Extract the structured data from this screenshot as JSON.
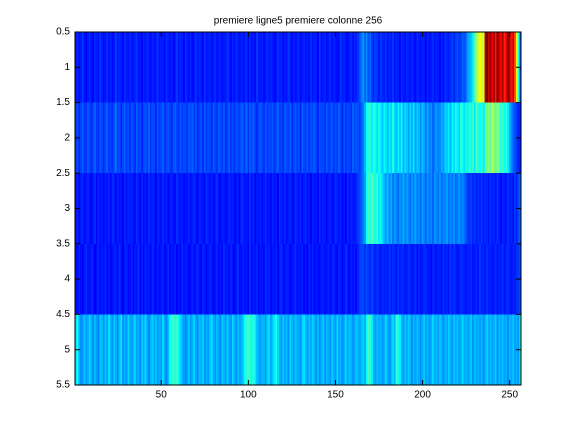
{
  "chart_data": {
    "type": "heatmap",
    "title": "premiere ligne5 premiere colonne 256",
    "colormap": "jet",
    "clim": [
      0,
      100
    ],
    "y_reversed": true,
    "xlim": [
      0.5,
      256.5
    ],
    "ylim": [
      0.5,
      5.5
    ],
    "xticks": [
      50,
      100,
      150,
      200,
      250
    ],
    "yticks": [
      0.5,
      1,
      1.5,
      2,
      2.5,
      3,
      3.5,
      4,
      4.5,
      5,
      5.5
    ],
    "z": [
      [
        14,
        16,
        13,
        15,
        18,
        14,
        12,
        15,
        17,
        14,
        13,
        16,
        15,
        14,
        18,
        15,
        13,
        15,
        17,
        14,
        16,
        13,
        15,
        18,
        14,
        16,
        15,
        13,
        17,
        15,
        14,
        16,
        15,
        13,
        16,
        18,
        14,
        15,
        13,
        16,
        14,
        17,
        15,
        13,
        16,
        14,
        15,
        18,
        14,
        16,
        15,
        13,
        17,
        15,
        14,
        16,
        13,
        15,
        18,
        14,
        16,
        15,
        13,
        17,
        15,
        14,
        16,
        13,
        15,
        17,
        14,
        16,
        15,
        13,
        18,
        14,
        15,
        16,
        13,
        15,
        17,
        14,
        15,
        16,
        13,
        15,
        14,
        18,
        15,
        13,
        16,
        14,
        17,
        15,
        13,
        16,
        14,
        15,
        17,
        13,
        16,
        14,
        15,
        13,
        18,
        15,
        14,
        16,
        13,
        15,
        17,
        14,
        16,
        15,
        13,
        14,
        17,
        15,
        16,
        13,
        15,
        14,
        18,
        15,
        13,
        16,
        14,
        15,
        17,
        13,
        15,
        16,
        14,
        15,
        13,
        17,
        14,
        16,
        15,
        13,
        18,
        14,
        15,
        16,
        13,
        15,
        17,
        14,
        16,
        15,
        13,
        14,
        18,
        15,
        16,
        14,
        13,
        15,
        17,
        14,
        16,
        15,
        18,
        20,
        24,
        28,
        22,
        26,
        20,
        23,
        18,
        16,
        19,
        17,
        15,
        18,
        16,
        15,
        17,
        14,
        16,
        15,
        18,
        14,
        16,
        15,
        13,
        17,
        15,
        14,
        16,
        15,
        14,
        16,
        15,
        13,
        17,
        15,
        14,
        16,
        15,
        13,
        16,
        14,
        15,
        17,
        14,
        16,
        15,
        13,
        16,
        14,
        18,
        16,
        15,
        17,
        19,
        16,
        18,
        20,
        17,
        19,
        22,
        20,
        24,
        28,
        30,
        32,
        36,
        45,
        52,
        58,
        62,
        55,
        60,
        95,
        100,
        92,
        98,
        88,
        96,
        85,
        100,
        92,
        88,
        97,
        84,
        90,
        99,
        95,
        86,
        92,
        80,
        60,
        40,
        20
      ],
      [
        18,
        20,
        16,
        19,
        22,
        17,
        18,
        21,
        19,
        16,
        20,
        22,
        18,
        17,
        21,
        19,
        16,
        20,
        22,
        18,
        19,
        17,
        21,
        23,
        18,
        20,
        16,
        19,
        22,
        18,
        20,
        17,
        21,
        19,
        17,
        22,
        18,
        20,
        16,
        19,
        21,
        18,
        22,
        17,
        20,
        19,
        16,
        21,
        18,
        20,
        22,
        17,
        19,
        21,
        18,
        16,
        20,
        22,
        19,
        17,
        21,
        18,
        20,
        19,
        17,
        21,
        19,
        22,
        18,
        20,
        16,
        19,
        21,
        17,
        22,
        18,
        20,
        19,
        16,
        21,
        19,
        17,
        22,
        20,
        18,
        21,
        16,
        19,
        22,
        18,
        20,
        17,
        21,
        19,
        18,
        22,
        20,
        18,
        23,
        17,
        21,
        19,
        22,
        18,
        16,
        20,
        21,
        19,
        17,
        22,
        18,
        20,
        19,
        21,
        17,
        20,
        22,
        18,
        19,
        16,
        21,
        20,
        18,
        22,
        17,
        19,
        21,
        18,
        20,
        16,
        22,
        19,
        18,
        21,
        17,
        20,
        19,
        22,
        18,
        16,
        21,
        19,
        20,
        17,
        22,
        18,
        19,
        21,
        17,
        20,
        18,
        22,
        19,
        16,
        21,
        18,
        20,
        19,
        17,
        22,
        19,
        21,
        20,
        18,
        22,
        25,
        30,
        38,
        42,
        40,
        36,
        44,
        38,
        34,
        40,
        36,
        32,
        38,
        35,
        30,
        36,
        33,
        40,
        34,
        31,
        37,
        33,
        38,
        30,
        35,
        32,
        28,
        34,
        30,
        36,
        28,
        33,
        30,
        26,
        32,
        28,
        25,
        30,
        24,
        27,
        22,
        25,
        28,
        24,
        26,
        30,
        28,
        34,
        32,
        36,
        30,
        38,
        34,
        40,
        36,
        33,
        42,
        38,
        35,
        40,
        36,
        44,
        38,
        42,
        35,
        46,
        40,
        38,
        44,
        36,
        42,
        48,
        52,
        46,
        55,
        50,
        45,
        52,
        48,
        40,
        44,
        38,
        42,
        36,
        30,
        26,
        22,
        20,
        18,
        16,
        15
      ],
      [
        14,
        16,
        12,
        15,
        17,
        13,
        15,
        16,
        14,
        12,
        15,
        17,
        13,
        16,
        14,
        15,
        13,
        15,
        14,
        16,
        12,
        17,
        15,
        13,
        16,
        14,
        15,
        12,
        17,
        14,
        16,
        15,
        16,
        14,
        13,
        17,
        15,
        12,
        16,
        14,
        15,
        13,
        17,
        14,
        16,
        15,
        12,
        16,
        15,
        13,
        17,
        14,
        16,
        12,
        15,
        16,
        14,
        13,
        17,
        15,
        14,
        16,
        13,
        15,
        14,
        16,
        13,
        15,
        17,
        14,
        12,
        16,
        15,
        14,
        13,
        17,
        15,
        14,
        16,
        13,
        15,
        17,
        14,
        12,
        16,
        15,
        13,
        14,
        17,
        15,
        16,
        13,
        14,
        15,
        12,
        17,
        16,
        14,
        15,
        13,
        17,
        14,
        16,
        12,
        15,
        14,
        16,
        13,
        15,
        17,
        14,
        15,
        13,
        16,
        14,
        15,
        12,
        17,
        15,
        14,
        16,
        13,
        15,
        16,
        14,
        12,
        17,
        15,
        14,
        16,
        13,
        15,
        17,
        14,
        15,
        12,
        16,
        14,
        15,
        13,
        17,
        14,
        16,
        15,
        12,
        15,
        16,
        14,
        13,
        17,
        15,
        14,
        16,
        13,
        15,
        12,
        17,
        14,
        16,
        15,
        14,
        16,
        18,
        20,
        22,
        25,
        28,
        38,
        44,
        40,
        46,
        42,
        38,
        44,
        36,
        40,
        34,
        30,
        28,
        32,
        26,
        30,
        24,
        28,
        26,
        22,
        27,
        25,
        30,
        24,
        28,
        26,
        23,
        27,
        25,
        29,
        24,
        26,
        22,
        28,
        25,
        23,
        27,
        24,
        26,
        22,
        28,
        25,
        24,
        27,
        22,
        26,
        25,
        28,
        23,
        26,
        24,
        27,
        22,
        25,
        28,
        24,
        26,
        23,
        20,
        18,
        17,
        19,
        16,
        18,
        15,
        17,
        16,
        18,
        15,
        17,
        16,
        14,
        17,
        15,
        16,
        14,
        17,
        15,
        13,
        16,
        15,
        14,
        17,
        15,
        16,
        14,
        18,
        15,
        20,
        22
      ],
      [
        15,
        13,
        16,
        14,
        12,
        15,
        17,
        14,
        13,
        16,
        15,
        12,
        14,
        16,
        13,
        15,
        14,
        16,
        13,
        15,
        12,
        14,
        16,
        15,
        13,
        17,
        14,
        12,
        15,
        16,
        13,
        14,
        16,
        13,
        15,
        14,
        17,
        12,
        15,
        13,
        16,
        14,
        15,
        12,
        17,
        14,
        13,
        16,
        13,
        15,
        16,
        12,
        14,
        17,
        13,
        15,
        14,
        16,
        12,
        15,
        13,
        17,
        14,
        15,
        15,
        12,
        14,
        16,
        13,
        15,
        17,
        14,
        12,
        16,
        15,
        13,
        14,
        16,
        15,
        12,
        14,
        16,
        13,
        15,
        12,
        17,
        14,
        15,
        13,
        16,
        14,
        12,
        15,
        17,
        13,
        14,
        16,
        14,
        15,
        12,
        17,
        13,
        15,
        14,
        16,
        12,
        15,
        14,
        13,
        17,
        15,
        16,
        13,
        15,
        14,
        16,
        12,
        15,
        17,
        13,
        14,
        16,
        15,
        12,
        14,
        15,
        17,
        13,
        15,
        14,
        16,
        13,
        15,
        12,
        17,
        14,
        16,
        13,
        15,
        14,
        12,
        16,
        15,
        14,
        14,
        16,
        13,
        15,
        17,
        14,
        12,
        16,
        15,
        13,
        14,
        17,
        15,
        12,
        16,
        14,
        15,
        13,
        16,
        18,
        20,
        19,
        17,
        20,
        18,
        16,
        19,
        17,
        15,
        18,
        16,
        14,
        17,
        15,
        16,
        14,
        18,
        15,
        17,
        16,
        14,
        18,
        15,
        17,
        16,
        14,
        15,
        17,
        16,
        14,
        15,
        17,
        13,
        16,
        14,
        15,
        17,
        16,
        14,
        15,
        13,
        16,
        15,
        14,
        16,
        15,
        14,
        17,
        15,
        16,
        14,
        18,
        15,
        17,
        16,
        14,
        15,
        17,
        16,
        15,
        14,
        16,
        15,
        17,
        14,
        15,
        16,
        14,
        18,
        15,
        16,
        14,
        17,
        15,
        16,
        14,
        15,
        17,
        14,
        16,
        15,
        18,
        14,
        16,
        17,
        15,
        14,
        16,
        15,
        17,
        18,
        20
      ],
      [
        35,
        38,
        30,
        26,
        28,
        32,
        27,
        30,
        34,
        29,
        26,
        31,
        28,
        25,
        33,
        30,
        26,
        32,
        28,
        35,
        30,
        27,
        33,
        29,
        26,
        31,
        36,
        28,
        30,
        27,
        34,
        29,
        27,
        31,
        33,
        28,
        30,
        26,
        32,
        29,
        34,
        28,
        26,
        30,
        33,
        29,
        31,
        27,
        30,
        28,
        34,
        29,
        26,
        32,
        38,
        42,
        44,
        40,
        43,
        38,
        34,
        30,
        28,
        26,
        29,
        32,
        27,
        30,
        34,
        28,
        26,
        31,
        29,
        33,
        27,
        30,
        28,
        32,
        35,
        30,
        27,
        31,
        29,
        26,
        33,
        30,
        28,
        32,
        29,
        27,
        34,
        30,
        26,
        31,
        28,
        30,
        33,
        38,
        42,
        44,
        40,
        38,
        43,
        36,
        32,
        29,
        28,
        31,
        30,
        27,
        33,
        35,
        29,
        32,
        36,
        40,
        34,
        30,
        28,
        33,
        29,
        31,
        27,
        34,
        30,
        28,
        32,
        29,
        30,
        27,
        33,
        35,
        31,
        28,
        32,
        29,
        34,
        30,
        27,
        31,
        26,
        30,
        33,
        28,
        31,
        29,
        27,
        32,
        30,
        28,
        34,
        29,
        31,
        26,
        30,
        33,
        28,
        32,
        30,
        27,
        29,
        33,
        30,
        28,
        31,
        34,
        30,
        38,
        44,
        42,
        36,
        30,
        28,
        32,
        29,
        31,
        27,
        30,
        33,
        29,
        26,
        31,
        34,
        30,
        42,
        40,
        36,
        30,
        28,
        32,
        29,
        33,
        30,
        27,
        31,
        28,
        32,
        29,
        26,
        30,
        33,
        28,
        31,
        27,
        30,
        34,
        29,
        31,
        28,
        32,
        30,
        26,
        31,
        29,
        33,
        30,
        27,
        32,
        29,
        31,
        28,
        30,
        34,
        29,
        31,
        28,
        30,
        33,
        27,
        32,
        29,
        30,
        28,
        31,
        26,
        30,
        33,
        29,
        31,
        28,
        30,
        33,
        27,
        31,
        29,
        32,
        28,
        30,
        26,
        31,
        29,
        33,
        28,
        30,
        27,
        42
      ]
    ]
  }
}
